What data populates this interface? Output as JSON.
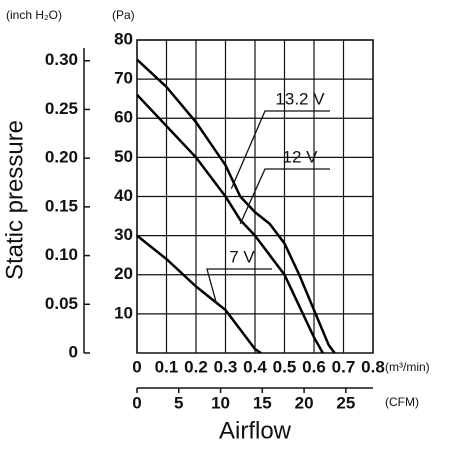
{
  "chart_data": {
    "type": "line",
    "y_unit_label": "(Pa)",
    "y2_unit_label": "(inch H₂O)",
    "x_unit_label": "(m³/min)",
    "x2_unit_label": "(CFM)",
    "xlabel": "Airflow",
    "ylabel": "Static pressure",
    "xlim": [
      0,
      0.8
    ],
    "xticks": [
      0,
      0.1,
      0.2,
      0.3,
      0.4,
      0.5,
      0.6,
      0.7,
      0.8
    ],
    "ylim": [
      0,
      80
    ],
    "yticks": [
      10,
      20,
      30,
      40,
      50,
      60,
      70,
      80
    ],
    "x2lim": [
      0,
      28.25
    ],
    "x2ticks": [
      0,
      5,
      10,
      15,
      20,
      25
    ],
    "y2lim": [
      0,
      0.3213
    ],
    "y2ticks": [
      0,
      0.05,
      {
        "value": 0.1,
        "label": "0.10"
      },
      0.15,
      {
        "value": 0.2,
        "label": "0.20"
      },
      0.25,
      {
        "value": 0.3,
        "label": "0.30"
      }
    ],
    "grid": true,
    "series": [
      {
        "name": "13.2 V",
        "color": "#000000",
        "x": [
          0,
          0.1,
          0.2,
          0.3,
          0.35,
          0.4,
          0.45,
          0.5,
          0.55,
          0.6,
          0.65,
          0.67
        ],
        "values": [
          75,
          68,
          59,
          48,
          40,
          36,
          33,
          28,
          20,
          11,
          2,
          0
        ]
      },
      {
        "name": "12 V",
        "color": "#000000",
        "x": [
          0,
          0.1,
          0.2,
          0.3,
          0.35,
          0.4,
          0.45,
          0.5,
          0.55,
          0.6,
          0.63
        ],
        "values": [
          66,
          58,
          50,
          40,
          34,
          30,
          25,
          20,
          12,
          4,
          0
        ]
      },
      {
        "name": "7 V",
        "color": "#000000",
        "x": [
          0,
          0.1,
          0.2,
          0.25,
          0.3,
          0.35,
          0.4,
          0.42
        ],
        "values": [
          30,
          24,
          17,
          14,
          11,
          6,
          1,
          0
        ]
      }
    ]
  }
}
